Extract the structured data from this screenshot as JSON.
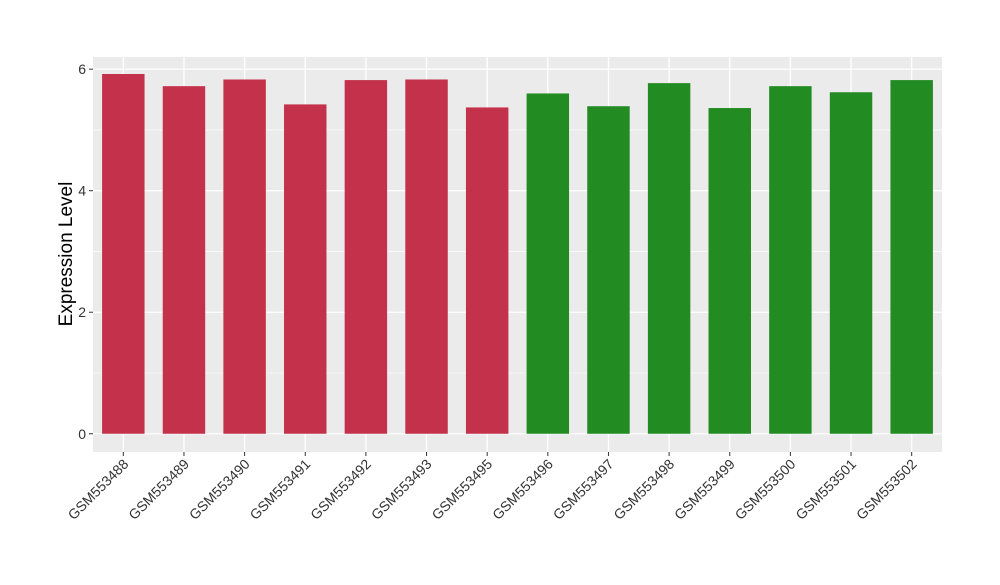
{
  "chart_data": {
    "type": "bar",
    "title": "",
    "xlabel": "",
    "ylabel": "Expression Level",
    "ylim": [
      -0.3,
      6.2
    ],
    "yticks": [
      0,
      2,
      4,
      6
    ],
    "grid": true,
    "categories": [
      "GSM553488",
      "GSM553489",
      "GSM553490",
      "GSM553491",
      "GSM553492",
      "GSM553493",
      "GSM553495",
      "GSM553496",
      "GSM553497",
      "GSM553498",
      "GSM553499",
      "GSM553500",
      "GSM553501",
      "GSM553502"
    ],
    "values": [
      5.92,
      5.72,
      5.83,
      5.42,
      5.82,
      5.83,
      5.37,
      5.6,
      5.39,
      5.77,
      5.36,
      5.72,
      5.62,
      5.82
    ],
    "groups": [
      "red",
      "red",
      "red",
      "red",
      "red",
      "red",
      "red",
      "green",
      "green",
      "green",
      "green",
      "green",
      "green",
      "green"
    ],
    "colors": {
      "red": "#C3314A",
      "green": "#228B22",
      "panel": "#EBEBEB",
      "grid": "#FFFFFF"
    }
  }
}
